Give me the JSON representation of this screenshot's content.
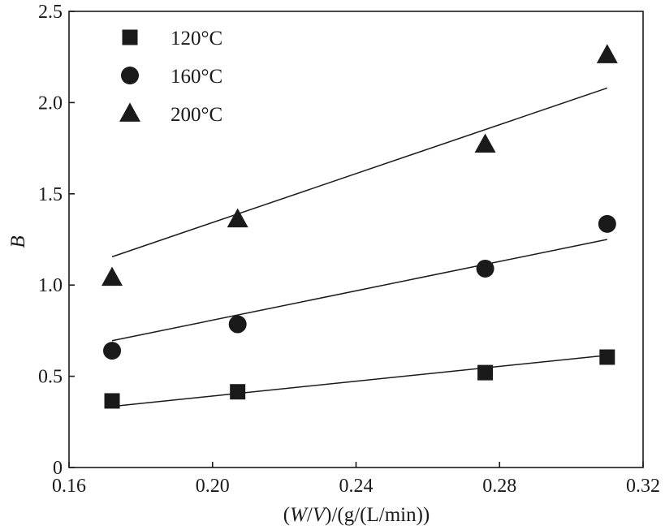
{
  "chart_data": {
    "type": "scatter",
    "xlabel_parts": {
      "open": "(",
      "w": "W",
      "slash": "/",
      "v": "V",
      "rest": ")/(g/(L/min))"
    },
    "ylabel": "B",
    "xlim": [
      0.16,
      0.32
    ],
    "ylim": [
      0,
      2.5
    ],
    "x_ticks": [
      "0.16",
      "0.20",
      "0.24",
      "0.28",
      "0.32"
    ],
    "y_ticks": [
      "0",
      "0.5",
      "1.0",
      "1.5",
      "2.0",
      "2.5"
    ],
    "legend_position": "top-left",
    "grid": false,
    "series": [
      {
        "name": "120°C",
        "marker": "square",
        "color": "#1a1a1a",
        "x": [
          0.172,
          0.207,
          0.276,
          0.31
        ],
        "y": [
          0.365,
          0.415,
          0.52,
          0.605
        ],
        "fit": {
          "x": [
            0.172,
            0.31
          ],
          "y": [
            0.335,
            0.615
          ]
        }
      },
      {
        "name": "160°C",
        "marker": "circle",
        "color": "#1a1a1a",
        "x": [
          0.172,
          0.207,
          0.276,
          0.31
        ],
        "y": [
          0.64,
          0.785,
          1.09,
          1.335
        ],
        "fit": {
          "x": [
            0.172,
            0.31
          ],
          "y": [
            0.695,
            1.25
          ]
        }
      },
      {
        "name": "200°C",
        "marker": "triangle",
        "color": "#1a1a1a",
        "x": [
          0.172,
          0.207,
          0.276,
          0.31
        ],
        "y": [
          1.04,
          1.36,
          1.77,
          2.26
        ],
        "fit": {
          "x": [
            0.172,
            0.31
          ],
          "y": [
            1.155,
            2.08
          ]
        }
      }
    ]
  }
}
